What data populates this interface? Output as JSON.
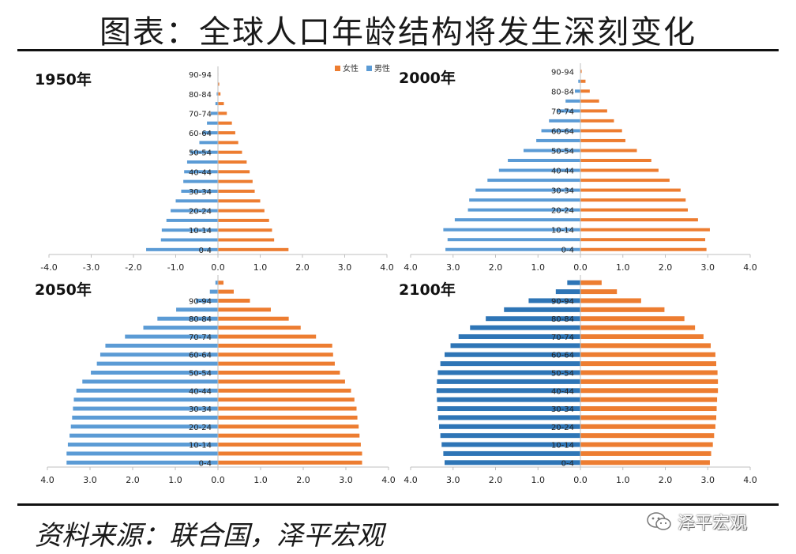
{
  "page": {
    "title": "图表：全球人口年龄结构将发生深刻变化",
    "source": "资料来源：联合国，泽平宏观",
    "watermark": "泽平宏观"
  },
  "colors": {
    "female": "#ed7d31",
    "male_1950": "#5b9bd5",
    "male_2000": "#5b9bd5",
    "male_2050": "#5b9bd5",
    "male_2100": "#2e75b6"
  },
  "chart_data": [
    {
      "type": "bar",
      "title": "1950年",
      "legend": [
        "女性",
        "男性"
      ],
      "legend_position": "top-right",
      "ytick_labels": [
        "0-4",
        "10-14",
        "20-24",
        "30-34",
        "40-44",
        "50-54",
        "60-64",
        "70-74",
        "80-84",
        "90-94"
      ],
      "xtick_labels": [
        "-4.0",
        "-3.0",
        "-2.0",
        "-1.0",
        "0.0",
        "1.0",
        "2.0",
        "3.0",
        "4.0"
      ],
      "xlim": [
        -4,
        4
      ],
      "series": [
        {
          "name": "女性",
          "values": [
            1.67,
            1.33,
            1.28,
            1.21,
            1.1,
            1.0,
            0.87,
            0.82,
            0.75,
            0.68,
            0.57,
            0.48,
            0.41,
            0.33,
            0.21,
            0.14,
            0.06,
            0.03,
            0.01
          ]
        },
        {
          "name": "男性",
          "values": [
            -1.7,
            -1.35,
            -1.33,
            -1.22,
            -1.12,
            -1.0,
            -0.87,
            -0.82,
            -0.8,
            -0.73,
            -0.65,
            -0.44,
            -0.37,
            -0.26,
            -0.17,
            -0.06,
            -0.03,
            -0.01,
            0
          ]
        }
      ]
    },
    {
      "type": "bar",
      "title": "2000年",
      "ytick_labels": [
        "0-4",
        "10-14",
        "20-24",
        "30-34",
        "40-44",
        "50-54",
        "60-64",
        "70-74",
        "80-84",
        "90-94"
      ],
      "xtick_labels": [
        "4.0",
        "3.0",
        "2.0",
        "1.0",
        "0.0",
        "1.0",
        "2.0",
        "3.0",
        "4.0"
      ],
      "xlim": [
        -4,
        4
      ],
      "series": [
        {
          "name": "女性",
          "values": [
            2.97,
            2.94,
            3.05,
            2.77,
            2.53,
            2.48,
            2.36,
            2.1,
            1.84,
            1.67,
            1.33,
            1.06,
            0.98,
            0.79,
            0.63,
            0.44,
            0.22,
            0.12,
            0.03
          ]
        },
        {
          "name": "男性",
          "values": [
            -3.18,
            -3.13,
            -3.23,
            -2.96,
            -2.65,
            -2.62,
            -2.47,
            -2.19,
            -1.92,
            -1.71,
            -1.34,
            -1.04,
            -0.92,
            -0.74,
            -0.56,
            -0.35,
            -0.13,
            -0.05,
            -0.01
          ]
        }
      ]
    },
    {
      "type": "bar",
      "title": "2050年",
      "ytick_labels": [
        "0-4",
        "10-14",
        "20-24",
        "30-34",
        "40-44",
        "50-54",
        "60-64",
        "70-74",
        "80-84",
        "90-94"
      ],
      "xtick_labels": [
        "4.0",
        "3.0",
        "2.0",
        "1.0",
        "0.0",
        "1.0",
        "2.0",
        "3.0",
        "4.0"
      ],
      "xlim": [
        -4,
        4
      ],
      "series": [
        {
          "name": "女性",
          "values": [
            3.38,
            3.38,
            3.35,
            3.32,
            3.3,
            3.27,
            3.25,
            3.2,
            3.12,
            2.98,
            2.86,
            2.74,
            2.7,
            2.68,
            2.3,
            1.94,
            1.66,
            1.24,
            0.75,
            0.37,
            0.13
          ]
        },
        {
          "name": "男性",
          "values": [
            -3.55,
            -3.55,
            -3.52,
            -3.48,
            -3.45,
            -3.42,
            -3.4,
            -3.38,
            -3.32,
            -3.18,
            -2.98,
            -2.84,
            -2.76,
            -2.64,
            -2.18,
            -1.75,
            -1.42,
            -0.98,
            -0.52,
            -0.19,
            -0.06
          ]
        }
      ]
    },
    {
      "type": "bar",
      "title": "2100年",
      "ytick_labels": [
        "0-4",
        "10-14",
        "20-24",
        "30-34",
        "40-44",
        "50-54",
        "60-64",
        "70-74",
        "80-84",
        "90-94"
      ],
      "xtick_labels": [
        "4.0",
        "3.0",
        "2.0",
        "1.0",
        "0.0",
        "1.0",
        "2.0",
        "3.0",
        "4.0"
      ],
      "xlim": [
        -4,
        4
      ],
      "series": [
        {
          "name": "女性",
          "values": [
            3.05,
            3.08,
            3.12,
            3.15,
            3.18,
            3.2,
            3.21,
            3.22,
            3.24,
            3.24,
            3.23,
            3.2,
            3.18,
            3.07,
            2.9,
            2.7,
            2.45,
            1.98,
            1.43,
            0.86,
            0.5
          ]
        },
        {
          "name": "男性",
          "values": [
            -3.2,
            -3.23,
            -3.27,
            -3.3,
            -3.33,
            -3.35,
            -3.37,
            -3.38,
            -3.39,
            -3.38,
            -3.36,
            -3.3,
            -3.2,
            -3.06,
            -2.87,
            -2.6,
            -2.23,
            -1.8,
            -1.22,
            -0.58,
            -0.31
          ]
        }
      ]
    }
  ]
}
